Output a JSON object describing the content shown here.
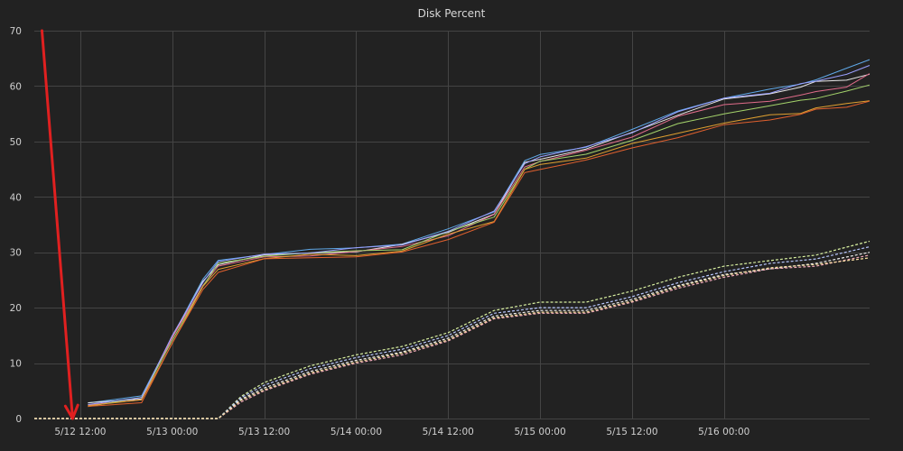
{
  "chart_data": {
    "type": "line",
    "title": "Disk Percent",
    "xlabel": "",
    "ylabel": "",
    "x_unit": "datetime",
    "xlim": [
      "5/12 06:00",
      "5/16 19:00"
    ],
    "ylim": [
      0,
      70
    ],
    "y_ticks": [
      0,
      10,
      20,
      30,
      40,
      50,
      60,
      70
    ],
    "x_ticks": [
      {
        "label": "5/12 12:00",
        "at": "5/12 12:00"
      },
      {
        "label": "5/13 00:00",
        "at": "5/13 00:00"
      },
      {
        "label": "5/13 12:00",
        "at": "5/13 12:00"
      },
      {
        "label": "5/14 00:00",
        "at": "5/14 00:00"
      },
      {
        "label": "5/14 12:00",
        "at": "5/14 12:00"
      },
      {
        "label": "5/15 00:00",
        "at": "5/15 00:00"
      },
      {
        "label": "5/15 12:00",
        "at": "5/15 12:00"
      },
      {
        "label": "5/16 00:00",
        "at": "5/16 00:00"
      }
    ],
    "grid": true,
    "legend": "none",
    "series": [
      {
        "group": "solid",
        "color": "#5fa8e8",
        "x": [
          "5/12 13:00",
          "5/12 20:00",
          "5/13 00:00",
          "5/13 04:00",
          "5/13 06:00",
          "5/13 12:00",
          "5/13 18:00",
          "5/14 00:00",
          "5/14 06:00",
          "5/14 12:00",
          "5/14 18:00",
          "5/14 22:00",
          "5/15 00:00",
          "5/15 06:00",
          "5/15 12:00",
          "5/15 18:00",
          "5/16 00:00",
          "5/16 06:00",
          "5/16 10:00",
          "5/16 12:00",
          "5/16 16:00",
          "5/16 19:00"
        ],
        "y": [
          2.8,
          3.9,
          15,
          25,
          28.5,
          29.8,
          30.3,
          30.9,
          31.6,
          34,
          37.5,
          46.5,
          47.5,
          49.2,
          52,
          55.5,
          58,
          59.2,
          60.5,
          61.2,
          63,
          65
        ]
      },
      {
        "group": "solid",
        "color": "#e8e8e8",
        "x": [
          "5/12 13:00",
          "5/12 20:00",
          "5/13 00:00",
          "5/13 04:00",
          "5/13 06:00",
          "5/13 12:00",
          "5/13 18:00",
          "5/14 00:00",
          "5/14 06:00",
          "5/14 12:00",
          "5/14 18:00",
          "5/14 22:00",
          "5/15 00:00",
          "5/15 06:00",
          "5/15 12:00",
          "5/15 18:00",
          "5/16 00:00",
          "5/16 06:00",
          "5/16 10:00",
          "5/16 12:00",
          "5/16 16:00",
          "5/16 19:00"
        ],
        "y": [
          2.6,
          3.7,
          14.6,
          24.6,
          28,
          29.4,
          29.8,
          30.3,
          31.2,
          33.7,
          37,
          46,
          47,
          48.6,
          51.5,
          55,
          57.5,
          58.6,
          60,
          60.6,
          61.2,
          62.2
        ]
      },
      {
        "group": "solid",
        "color": "#e06c8a",
        "x": [
          "5/12 13:00",
          "5/12 20:00",
          "5/13 00:00",
          "5/13 04:00",
          "5/13 06:00",
          "5/13 12:00",
          "5/13 18:00",
          "5/14 00:00",
          "5/14 06:00",
          "5/14 12:00",
          "5/14 18:00",
          "5/14 22:00",
          "5/15 00:00",
          "5/15 06:00",
          "5/15 12:00",
          "5/15 18:00",
          "5/16 00:00",
          "5/16 06:00",
          "5/16 10:00",
          "5/16 12:00",
          "5/16 16:00",
          "5/16 19:00"
        ],
        "y": [
          2.5,
          3.5,
          14.4,
          24.2,
          27.5,
          29,
          29.6,
          30,
          31,
          33.2,
          36.6,
          45.5,
          46.5,
          48.2,
          51,
          54.5,
          56.5,
          57.5,
          58.2,
          59,
          60,
          62
        ]
      },
      {
        "group": "solid",
        "color": "#a4d36b",
        "x": [
          "5/12 13:00",
          "5/12 20:00",
          "5/13 00:00",
          "5/13 04:00",
          "5/13 06:00",
          "5/13 12:00",
          "5/13 18:00",
          "5/14 00:00",
          "5/14 06:00",
          "5/14 12:00",
          "5/14 18:00",
          "5/14 22:00",
          "5/15 00:00",
          "5/15 06:00",
          "5/15 12:00",
          "5/15 18:00",
          "5/16 00:00",
          "5/16 06:00",
          "5/16 10:00",
          "5/16 12:00",
          "5/16 16:00",
          "5/16 19:00"
        ],
        "y": [
          2.4,
          3.6,
          14.2,
          24,
          27.8,
          29.5,
          29.9,
          30.1,
          30.7,
          33.6,
          36.3,
          45.2,
          46.2,
          47.8,
          50.3,
          53,
          55.2,
          56.4,
          57.3,
          58,
          58.9,
          60.2
        ]
      },
      {
        "group": "solid",
        "color": "#e0a030",
        "x": [
          "5/12 13:00",
          "5/12 20:00",
          "5/13 00:00",
          "5/13 04:00",
          "5/13 06:00",
          "5/13 12:00",
          "5/13 18:00",
          "5/14 00:00",
          "5/14 06:00",
          "5/14 12:00",
          "5/14 18:00",
          "5/14 22:00",
          "5/15 00:00",
          "5/15 06:00",
          "5/15 12:00",
          "5/15 18:00",
          "5/16 00:00",
          "5/16 06:00",
          "5/16 10:00",
          "5/16 12:00",
          "5/16 16:00",
          "5/16 19:00"
        ],
        "y": [
          2.2,
          3.3,
          13.8,
          23.6,
          27,
          29,
          29.4,
          29.6,
          30.2,
          33.1,
          35.8,
          44.8,
          45.8,
          47.2,
          49.4,
          51.6,
          53.4,
          54.6,
          55.3,
          56,
          56.7,
          57.6
        ]
      },
      {
        "group": "solid",
        "color": "#e0602e",
        "x": [
          "5/12 13:00",
          "5/12 20:00",
          "5/13 00:00",
          "5/13 04:00",
          "5/13 06:00",
          "5/13 12:00",
          "5/13 18:00",
          "5/14 00:00",
          "5/14 06:00",
          "5/14 12:00",
          "5/14 18:00",
          "5/14 22:00",
          "5/15 00:00",
          "5/15 06:00",
          "5/15 12:00",
          "5/15 18:00",
          "5/16 00:00",
          "5/16 06:00",
          "5/16 10:00",
          "5/16 12:00",
          "5/16 16:00",
          "5/16 19:00"
        ],
        "y": [
          2.0,
          3.1,
          13.5,
          23.2,
          26.6,
          28.6,
          29.1,
          29.3,
          29.8,
          32.5,
          35.4,
          44.2,
          45.2,
          46.5,
          48.8,
          50.9,
          52.8,
          54,
          55,
          55.6,
          56.4,
          57.2
        ]
      },
      {
        "group": "solid",
        "color": "#9aa0ff",
        "x": [
          "5/12 13:00",
          "5/12 20:00",
          "5/13 00:00",
          "5/13 04:00",
          "5/13 06:00",
          "5/13 12:00",
          "5/13 18:00",
          "5/14 00:00",
          "5/14 06:00",
          "5/14 12:00",
          "5/14 18:00",
          "5/14 22:00",
          "5/15 00:00",
          "5/15 06:00",
          "5/15 12:00",
          "5/15 18:00",
          "5/16 00:00",
          "5/16 06:00",
          "5/16 10:00",
          "5/16 12:00",
          "5/16 16:00",
          "5/16 19:00"
        ],
        "y": [
          2.7,
          3.8,
          14.8,
          24.8,
          28.2,
          29.6,
          30.1,
          30.6,
          31.4,
          33.9,
          37.2,
          46.2,
          47.2,
          48.9,
          51.8,
          55.2,
          57.8,
          58.9,
          60.2,
          61,
          62.2,
          63.5
        ]
      },
      {
        "group": "dashed",
        "color": "#f0f0f0",
        "x": [
          "5/12 06:00",
          "5/13 06:00",
          "5/13 09:00",
          "5/13 12:00",
          "5/13 18:00",
          "5/14 00:00",
          "5/14 06:00",
          "5/14 12:00",
          "5/14 15:00",
          "5/14 18:00",
          "5/15 00:00",
          "5/15 06:00",
          "5/15 12:00",
          "5/15 18:00",
          "5/16 00:00",
          "5/16 06:00",
          "5/16 12:00",
          "5/16 19:00"
        ],
        "y": [
          0,
          0,
          3.5,
          5.5,
          8.5,
          10.5,
          12,
          14.5,
          16.5,
          18.5,
          19.5,
          19.5,
          21.5,
          24,
          26,
          27,
          28,
          30
        ]
      },
      {
        "group": "dashed",
        "color": "#d8f0a0",
        "x": [
          "5/12 06:00",
          "5/13 06:00",
          "5/13 09:00",
          "5/13 12:00",
          "5/13 18:00",
          "5/14 00:00",
          "5/14 06:00",
          "5/14 12:00",
          "5/14 15:00",
          "5/14 18:00",
          "5/15 00:00",
          "5/15 06:00",
          "5/15 12:00",
          "5/15 18:00",
          "5/16 00:00",
          "5/16 06:00",
          "5/16 12:00",
          "5/16 19:00"
        ],
        "y": [
          0,
          0,
          4,
          6.5,
          9.5,
          11.5,
          13,
          15.5,
          17.5,
          19.5,
          21,
          21,
          23,
          25.5,
          27.5,
          28.5,
          29.5,
          32
        ]
      },
      {
        "group": "dashed",
        "color": "#f0a8b8",
        "x": [
          "5/12 06:00",
          "5/13 06:00",
          "5/13 09:00",
          "5/13 12:00",
          "5/13 18:00",
          "5/14 00:00",
          "5/14 06:00",
          "5/14 12:00",
          "5/14 15:00",
          "5/14 18:00",
          "5/15 00:00",
          "5/15 06:00",
          "5/15 12:00",
          "5/15 18:00",
          "5/16 00:00",
          "5/16 06:00",
          "5/16 12:00",
          "5/16 19:00"
        ],
        "y": [
          0,
          0,
          3,
          5,
          8,
          10,
          11.5,
          14,
          16,
          18,
          19,
          19,
          21,
          23.5,
          25.5,
          27,
          27.5,
          29.5
        ]
      },
      {
        "group": "dashed",
        "color": "#b8c8ff",
        "x": [
          "5/12 06:00",
          "5/13 06:00",
          "5/13 09:00",
          "5/13 12:00",
          "5/13 18:00",
          "5/14 00:00",
          "5/14 06:00",
          "5/14 12:00",
          "5/14 15:00",
          "5/14 18:00",
          "5/15 00:00",
          "5/15 06:00",
          "5/15 12:00",
          "5/15 18:00",
          "5/16 00:00",
          "5/16 06:00",
          "5/16 12:00",
          "5/16 19:00"
        ],
        "y": [
          0,
          0,
          3.8,
          6,
          9,
          11,
          12.5,
          15,
          17,
          19,
          20,
          20,
          22,
          24.5,
          26.5,
          28,
          28.8,
          31
        ]
      },
      {
        "group": "dashed",
        "color": "#f8e0a0",
        "x": [
          "5/12 06:00",
          "5/13 06:00",
          "5/13 09:00",
          "5/13 12:00",
          "5/13 18:00",
          "5/14 00:00",
          "5/14 06:00",
          "5/14 12:00",
          "5/14 15:00",
          "5/14 18:00",
          "5/15 00:00",
          "5/15 06:00",
          "5/15 12:00",
          "5/15 18:00",
          "5/16 00:00",
          "5/16 06:00",
          "5/16 12:00",
          "5/16 19:00"
        ],
        "y": [
          0,
          0,
          3.3,
          5.2,
          8.2,
          10.2,
          11.8,
          14.2,
          16.2,
          18.2,
          19.2,
          19.2,
          21.2,
          23.8,
          25.8,
          27.2,
          27.8,
          29
        ]
      }
    ],
    "annotations": [
      {
        "type": "arrow",
        "color": "#e02020",
        "from": [
          "5/12 07:00",
          70
        ],
        "to": [
          "5/12 11:00",
          0
        ]
      }
    ]
  }
}
